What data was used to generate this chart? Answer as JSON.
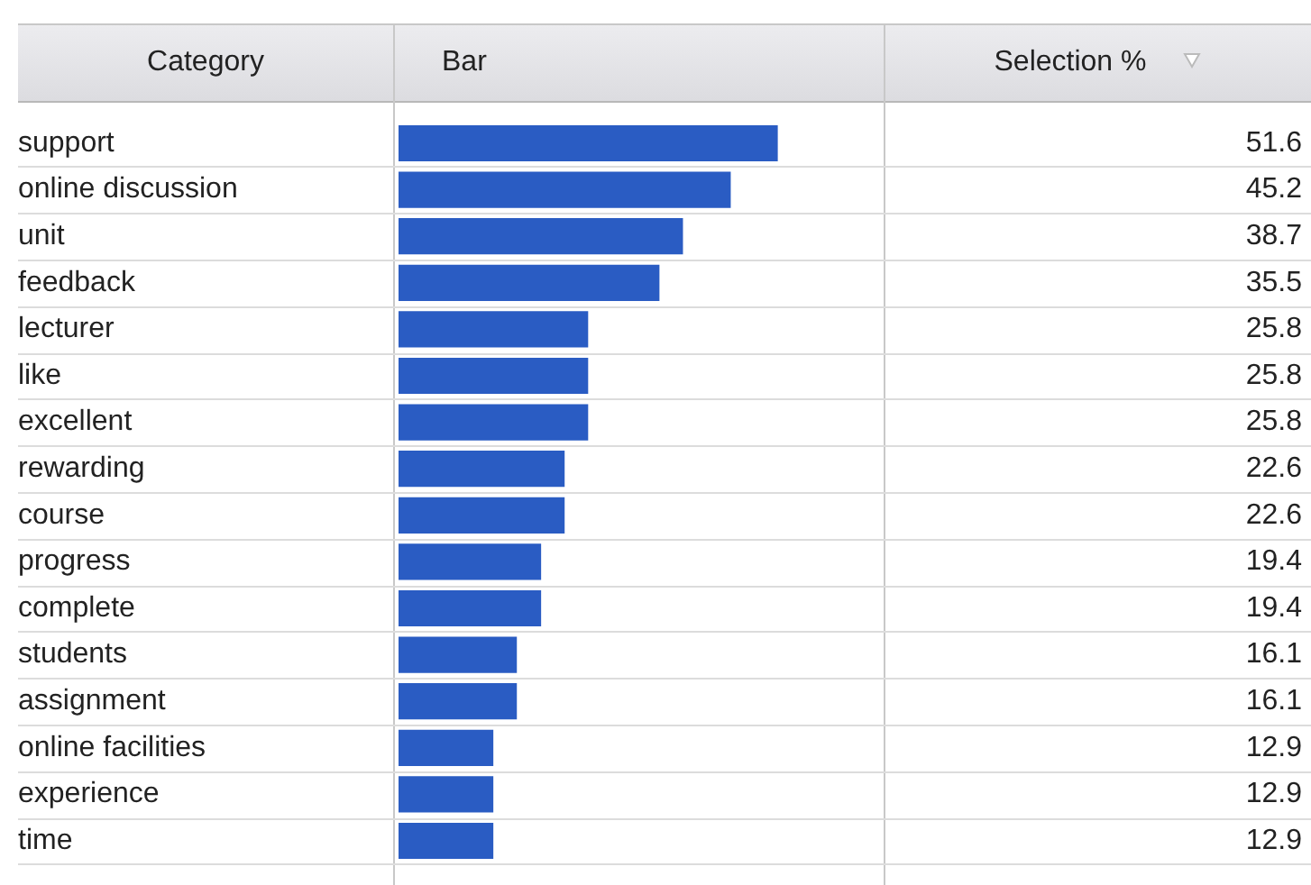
{
  "chart_data": {
    "type": "bar",
    "orientation": "horizontal",
    "ylabel": "Category",
    "xlabel": "Bar",
    "annotations": [
      "Selection %"
    ],
    "categories": [
      "support",
      "online discussion",
      "unit",
      "feedback",
      "lecturer",
      "like",
      "excellent",
      "rewarding",
      "course",
      "progress",
      "complete",
      "students",
      "assignment",
      "online facilities",
      "experience",
      "time"
    ],
    "values": [
      51.6,
      45.2,
      38.7,
      35.5,
      25.8,
      25.8,
      25.8,
      22.6,
      22.6,
      19.4,
      19.4,
      16.1,
      16.1,
      12.9,
      12.9,
      12.9
    ],
    "color": "#2a5cc3",
    "xlim": [
      0,
      66
    ],
    "grid": "y",
    "tick_labels": "y",
    "data_labels": true,
    "legend": false
  }
}
